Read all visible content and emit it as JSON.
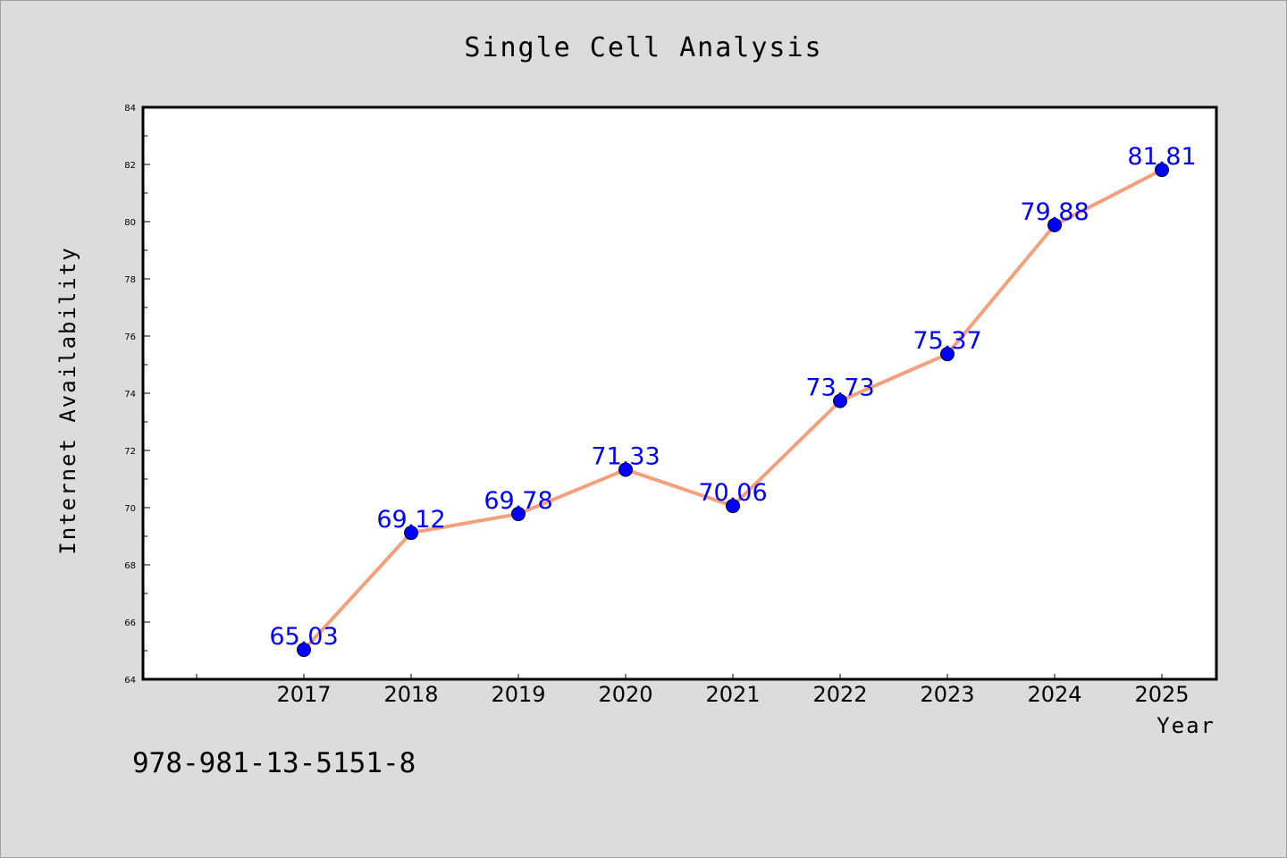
{
  "chart_data": {
    "type": "line",
    "title": "Single Cell Analysis",
    "xlabel": "Year",
    "ylabel": "Internet Availability",
    "categories": [
      "2017",
      "2018",
      "2019",
      "2020",
      "2021",
      "2022",
      "2023",
      "2024",
      "2025"
    ],
    "series": [
      {
        "values": [
          65.03,
          69.12,
          69.78,
          71.33,
          70.06,
          73.73,
          75.37,
          79.88,
          81.81
        ],
        "labels": [
          "65.03",
          "69.12",
          "69.78",
          "71.33",
          "70.06",
          "73.73",
          "75.37",
          "79.88",
          "81.81"
        ],
        "line_color": "#f4a07c",
        "marker_color": "#0000ff"
      }
    ],
    "ylim": [
      64,
      84
    ],
    "yticks": [
      "64",
      "66",
      "68",
      "70",
      "72",
      "74",
      "76",
      "78",
      "80",
      "82",
      "84"
    ],
    "grid": false,
    "legend": "none"
  },
  "footnote": "978-981-13-5151-8",
  "colors": {
    "background": "#dcdcdc",
    "plot_area": "#ffffff",
    "line": "#f4a07c",
    "marker": "#0000ff",
    "data_label": "#0000ff"
  }
}
